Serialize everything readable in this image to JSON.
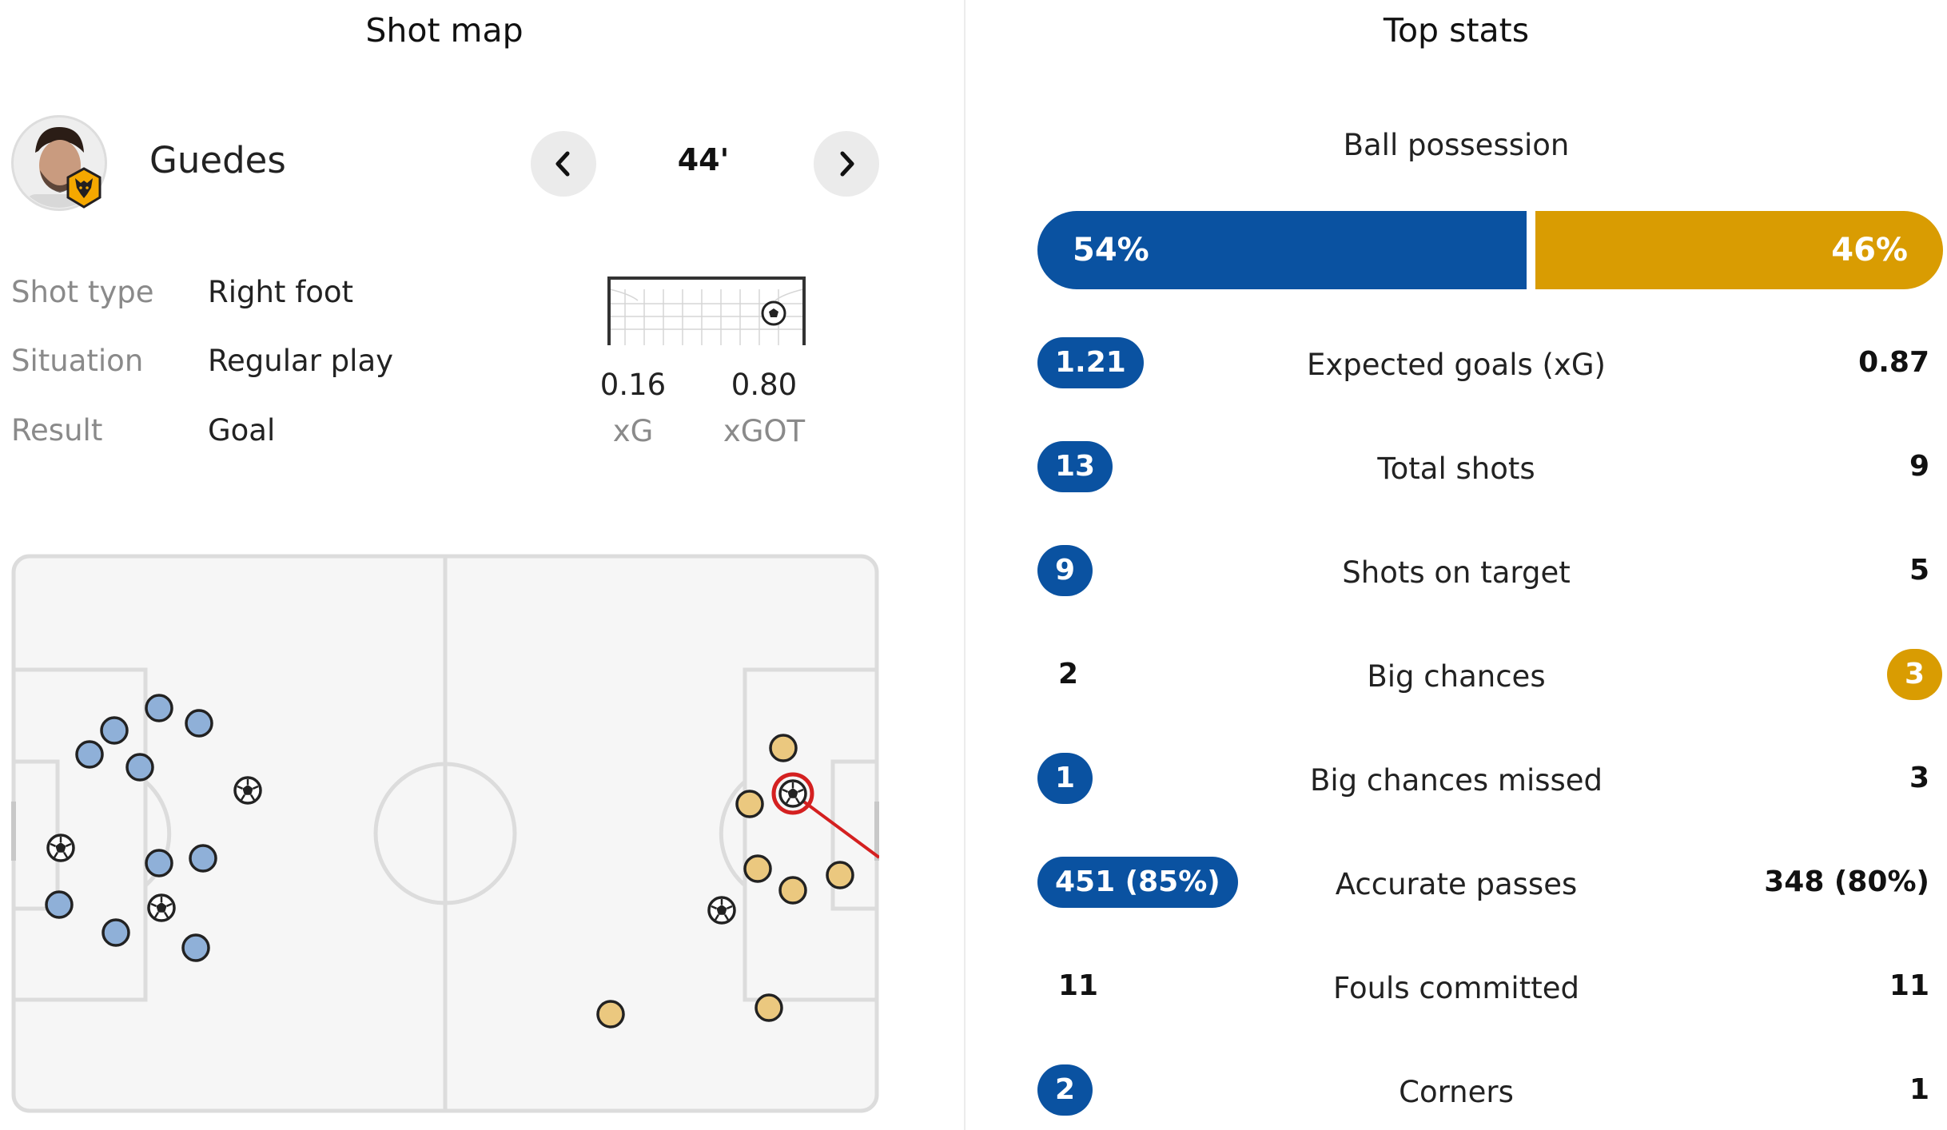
{
  "shot_map": {
    "title": "Shot map",
    "player": {
      "name": "Guedes",
      "badge": "wolves-badge"
    },
    "minute": "44'",
    "details": [
      {
        "label": "Shot type",
        "value": "Right foot"
      },
      {
        "label": "Situation",
        "value": "Regular play"
      },
      {
        "label": "Result",
        "value": "Goal"
      }
    ],
    "xg": {
      "value": "0.16",
      "label": "xG"
    },
    "xgot": {
      "value": "0.80",
      "label": "xGOT"
    },
    "home_color": "#8fb0d8",
    "away_color": "#ebc87f",
    "selected_color": "#d42020"
  },
  "top_stats": {
    "title": "Top stats",
    "possession": {
      "label": "Ball possession",
      "home": "54%",
      "away": "46%",
      "home_share": 54
    },
    "rows": [
      {
        "label": "Expected goals (xG)",
        "home": "1.21",
        "away": "0.87",
        "leader": "home"
      },
      {
        "label": "Total shots",
        "home": "13",
        "away": "9",
        "leader": "home"
      },
      {
        "label": "Shots on target",
        "home": "9",
        "away": "5",
        "leader": "home"
      },
      {
        "label": "Big chances",
        "home": "2",
        "away": "3",
        "leader": "away"
      },
      {
        "label": "Big chances missed",
        "home": "1",
        "away": "3",
        "leader": "home"
      },
      {
        "label": "Accurate passes",
        "home": "451 (85%)",
        "away": "348 (80%)",
        "leader": "home"
      },
      {
        "label": "Fouls committed",
        "home": "11",
        "away": "11",
        "leader": "none"
      },
      {
        "label": "Corners",
        "home": "2",
        "away": "1",
        "leader": "home"
      }
    ],
    "home_color": "#0a52a1",
    "away_color": "#d99c02"
  }
}
